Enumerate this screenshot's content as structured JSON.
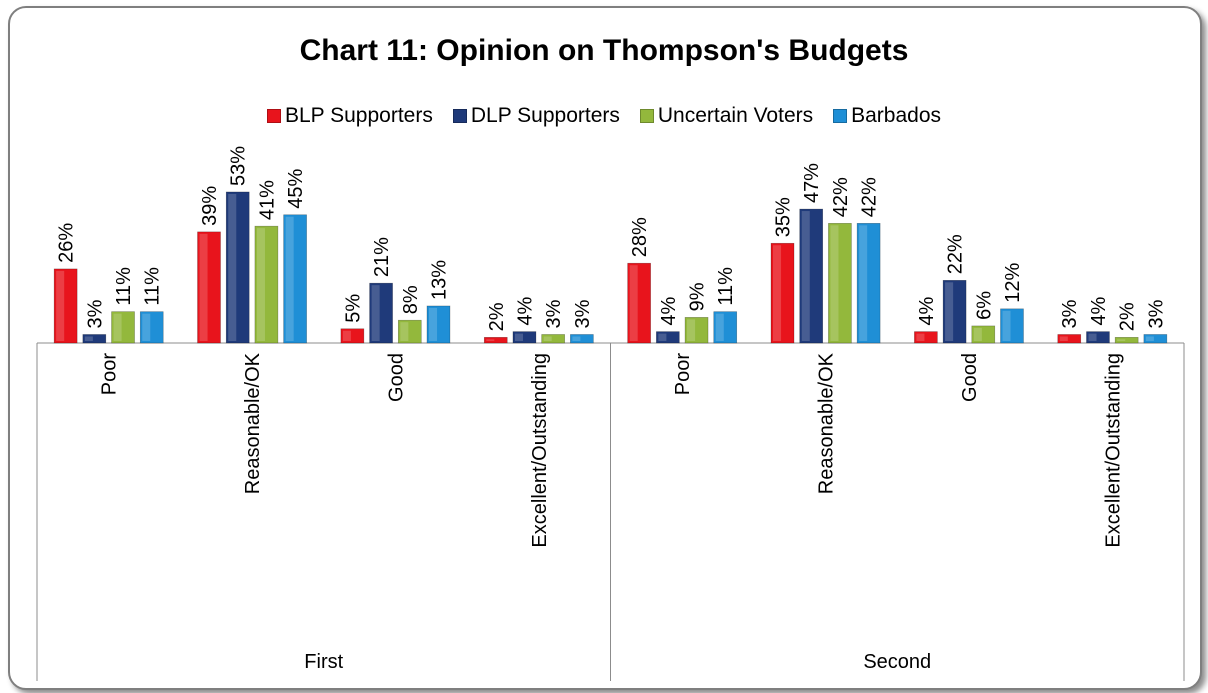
{
  "chart_data": {
    "type": "bar",
    "title": "Chart 11: Opinion on Thompson's Budgets",
    "groups": [
      {
        "label": "First",
        "categories": [
          "Poor",
          "Reasonable/OK",
          "Good",
          "Excellent/Outstanding"
        ]
      },
      {
        "label": "Second",
        "categories": [
          "Poor",
          "Reasonable/OK",
          "Good",
          "Excellent/Outstanding"
        ]
      }
    ],
    "series": [
      {
        "name": "BLP Supporters",
        "color": "#e8141c",
        "values": [
          26,
          39,
          5,
          2,
          28,
          35,
          4,
          3
        ]
      },
      {
        "name": "DLP Supporters",
        "color": "#1f3a7a",
        "values": [
          3,
          53,
          21,
          4,
          4,
          47,
          22,
          4
        ]
      },
      {
        "name": "Uncertain Voters",
        "color": "#93b83c",
        "values": [
          11,
          41,
          8,
          3,
          9,
          42,
          6,
          2
        ]
      },
      {
        "name": "Barbados",
        "color": "#1f8fd6",
        "values": [
          11,
          45,
          13,
          3,
          11,
          42,
          12,
          3
        ]
      }
    ],
    "value_suffix": "%",
    "legend_position": "top",
    "grid": false
  }
}
